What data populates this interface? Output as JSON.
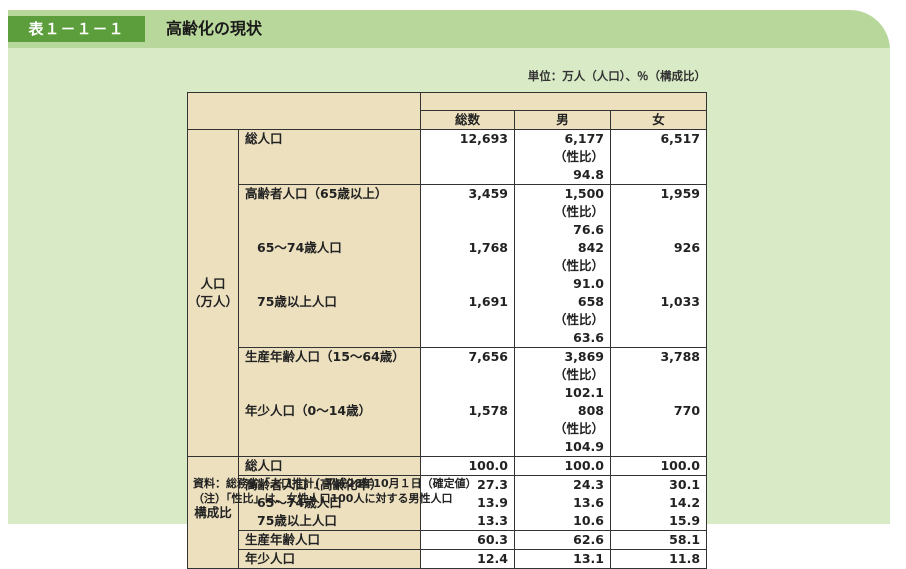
{
  "header": {
    "table_number": "表１－１－１",
    "title": "高齢化の現状"
  },
  "unit": "単位：万人（人口）、％（構成比）",
  "columns": [
    "総数",
    "男",
    "女"
  ],
  "population_section": {
    "category_line1": "人口",
    "category_line2": "（万人）",
    "rows": {
      "total": {
        "label": "総人口",
        "total": "12,693",
        "male": "6,177",
        "female": "6,517",
        "ratio": "（性比）  94.8"
      },
      "elderly": {
        "label": "高齢者人口（65歳以上）",
        "total": "3,459",
        "male": "1,500",
        "female": "1,959",
        "ratio": "（性比）  76.6"
      },
      "age_65_74": {
        "label": "65～74歳人口",
        "total": "1,768",
        "male": "842",
        "female": "926",
        "ratio": "（性比）  91.0"
      },
      "age_75_plus": {
        "label": "75歳以上人口",
        "total": "1,691",
        "male": "658",
        "female": "1,033",
        "ratio": "（性比）  63.6"
      },
      "working": {
        "label": "生産年齢人口（15～64歳）",
        "total": "7,656",
        "male": "3,869",
        "female": "3,788",
        "ratio": "（性比）102.1"
      },
      "young": {
        "label": "年少人口（0～14歳）",
        "total": "1,578",
        "male": "808",
        "female": "770",
        "ratio": "（性比）104.9"
      }
    }
  },
  "composition_section": {
    "category": "構成比",
    "rows": {
      "total": {
        "label": "総人口",
        "total": "100.0",
        "male": "100.0",
        "female": "100.0"
      },
      "elderly": {
        "label": "高齢者人口（高齢化率）",
        "total": "27.3",
        "male": "24.3",
        "female": "30.1"
      },
      "age_65_74": {
        "label": "65～74歳人口",
        "total": "13.9",
        "male": "13.6",
        "female": "14.2"
      },
      "age_75_plus": {
        "label": "75歳以上人口",
        "total": "13.3",
        "male": "10.6",
        "female": "15.9"
      },
      "working": {
        "label": "生産年齢人口",
        "total": "60.3",
        "male": "62.6",
        "female": "58.1"
      },
      "young": {
        "label": "年少人口",
        "total": "12.4",
        "male": "13.1",
        "female": "11.8"
      }
    }
  },
  "notes": {
    "source": "資料：総務省「人口推計」平成28年10月１日（確定値）",
    "note": "（注）「性比」は、女性人口100人に対する男性人口"
  }
}
